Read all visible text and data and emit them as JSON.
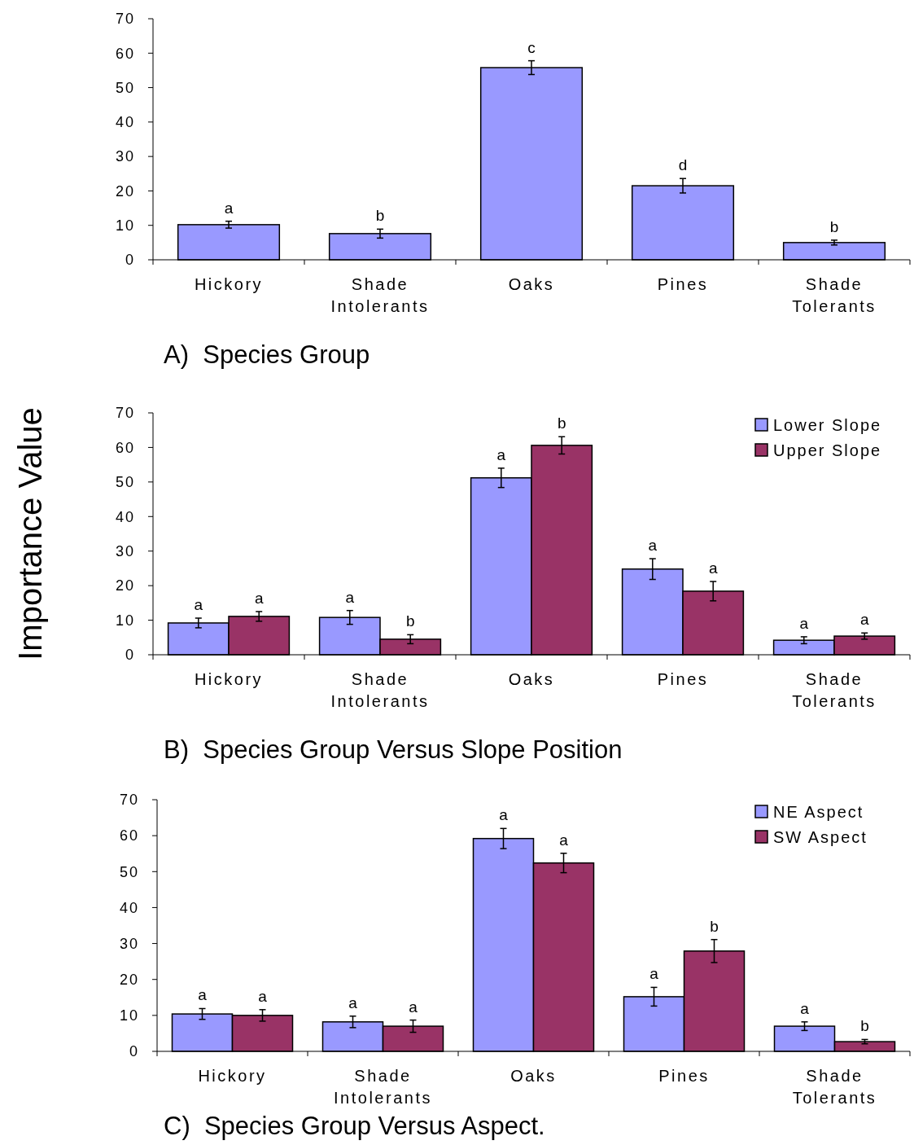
{
  "chart_data": [
    {
      "type": "bar",
      "title": "A)  Species Group",
      "categories": [
        "Hickory",
        "Shade Intolerants",
        "Oaks",
        "Pines",
        "Shade Tolerants"
      ],
      "values": [
        10.2,
        7.6,
        55.8,
        21.5,
        5.0
      ],
      "errors": [
        1.0,
        1.3,
        2.0,
        2.1,
        0.7
      ],
      "color": "#9999ff",
      "ylim": [
        0,
        70
      ],
      "yticks": [
        0,
        10,
        20,
        30,
        40,
        50,
        60,
        70
      ],
      "grid": false,
      "legend": false,
      "annotations": [
        "a",
        "b",
        "c",
        "d",
        "b"
      ]
    },
    {
      "type": "bar",
      "title": "B)  Species Group Versus Slope Position",
      "ylabel": "Importance Value",
      "categories": [
        "Hickory",
        "Shade Intolerants",
        "Oaks",
        "Pines",
        "Shade Tolerants"
      ],
      "series": [
        {
          "name": "Lower Slope",
          "color": "#9999ff",
          "values": [
            9.2,
            10.8,
            51.2,
            24.8,
            4.2
          ],
          "errors": [
            1.4,
            2.0,
            2.8,
            3.0,
            1.0
          ]
        },
        {
          "name": "Upper Slope",
          "color": "#993366",
          "values": [
            11.1,
            4.5,
            60.6,
            18.4,
            5.4
          ],
          "errors": [
            1.4,
            1.3,
            2.5,
            2.8,
            0.9
          ]
        }
      ],
      "ylim": [
        0,
        70
      ],
      "yticks": [
        0,
        10,
        20,
        30,
        40,
        50,
        60,
        70
      ],
      "grid": false,
      "legend": "top right",
      "annotations": [
        "a",
        "a",
        "a",
        "b",
        "a",
        "b",
        "a",
        "a",
        "a",
        "a"
      ]
    },
    {
      "type": "bar",
      "title": "C)  Species Group Versus Aspect.",
      "categories": [
        "Hickory",
        "Shade Intolerants",
        "Oaks",
        "Pines",
        "Shade Tolerants"
      ],
      "series": [
        {
          "name": "NE Aspect",
          "color": "#9999ff",
          "values": [
            10.4,
            8.2,
            59.2,
            15.2,
            7.0
          ],
          "errors": [
            1.5,
            1.6,
            2.8,
            2.6,
            1.2
          ]
        },
        {
          "name": "SW Aspect",
          "color": "#993366",
          "values": [
            10.0,
            7.0,
            52.4,
            27.9,
            2.7
          ],
          "errors": [
            1.6,
            1.7,
            2.7,
            3.2,
            0.6
          ]
        }
      ],
      "ylim": [
        0,
        70
      ],
      "yticks": [
        0,
        10,
        20,
        30,
        40,
        50,
        60,
        70
      ],
      "grid": false,
      "legend": "top right",
      "annotations": [
        "a",
        "a",
        "a",
        "a",
        "a",
        "a",
        "a",
        "b",
        "a",
        "b"
      ]
    }
  ]
}
